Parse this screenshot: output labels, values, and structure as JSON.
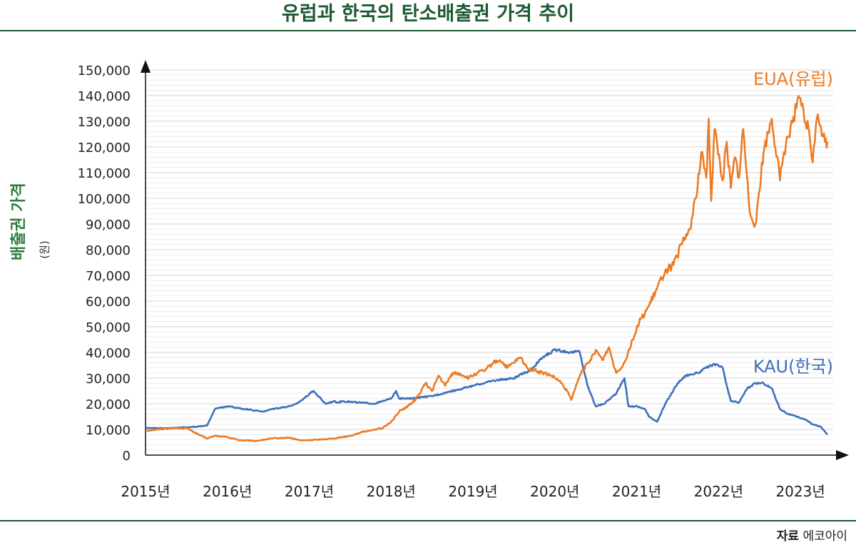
{
  "title": "유럽과 한국의 탄소배출권 가격 추이",
  "source": {
    "label": "자료",
    "name": "에코아이"
  },
  "colors": {
    "eua": "#ec7b24",
    "kau": "#3d6fbd",
    "title": "#1e5a32",
    "ylabel": "#2e7d3e",
    "grid": "#dcdcdc"
  },
  "chart_data": {
    "type": "line",
    "title": "유럽과 한국의 탄소배출권 가격 추이",
    "ylabel": "배출권 가격",
    "yunit": "(원)",
    "xlabel": "",
    "xlim": [
      2015.0,
      2023.4
    ],
    "ylim": [
      0,
      150000
    ],
    "yticks": [
      0,
      10000,
      20000,
      30000,
      40000,
      50000,
      60000,
      70000,
      80000,
      90000,
      100000,
      110000,
      120000,
      130000,
      140000,
      150000
    ],
    "ytick_labels": [
      "0",
      "10,000",
      "20,000",
      "30,000",
      "40,000",
      "50,000",
      "60,000",
      "70,000",
      "80,000",
      "90,000",
      "100,000",
      "110,000",
      "120,000",
      "130,000",
      "140,000",
      "150,000"
    ],
    "xticks": [
      2015,
      2016,
      2017,
      2018,
      2019,
      2020,
      2021,
      2022,
      2023
    ],
    "xtick_labels": [
      "2015년",
      "2016년",
      "2017년",
      "2018년",
      "2019년",
      "2020년",
      "2021년",
      "2022년",
      "2023년"
    ],
    "grid": true,
    "series": [
      {
        "name": "EUA(유럽)",
        "color": "#ec7b24",
        "x": [
          2015.0,
          2015.15,
          2015.3,
          2015.5,
          2015.65,
          2015.75,
          2015.85,
          2016.0,
          2016.15,
          2016.35,
          2016.55,
          2016.75,
          2016.9,
          2017.1,
          2017.3,
          2017.5,
          2017.65,
          2017.8,
          2017.9,
          2018.0,
          2018.1,
          2018.25,
          2018.33,
          2018.42,
          2018.5,
          2018.58,
          2018.66,
          2018.75,
          2018.85,
          2018.95,
          2019.05,
          2019.15,
          2019.25,
          2019.33,
          2019.42,
          2019.5,
          2019.58,
          2019.66,
          2019.75,
          2019.85,
          2019.95,
          2020.05,
          2020.15,
          2020.2,
          2020.25,
          2020.33,
          2020.42,
          2020.5,
          2020.58,
          2020.66,
          2020.75,
          2020.85,
          2020.95,
          2021.05,
          2021.15,
          2021.25,
          2021.35,
          2021.45,
          2021.55,
          2021.65,
          2021.72,
          2021.8,
          2021.85,
          2021.88,
          2021.91,
          2021.95,
          2022.05,
          2022.1,
          2022.15,
          2022.2,
          2022.25,
          2022.3,
          2022.38,
          2022.45,
          2022.55,
          2022.65,
          2022.75,
          2022.8,
          2022.88,
          2022.95,
          2023.0,
          2023.05,
          2023.1,
          2023.15,
          2023.2,
          2023.25,
          2023.3,
          2023.33
        ],
        "values": [
          9500,
          10000,
          10500,
          10500,
          8000,
          6500,
          7500,
          7000,
          5800,
          5500,
          6500,
          6800,
          5700,
          6000,
          6500,
          7500,
          9000,
          10000,
          10500,
          13000,
          17000,
          20000,
          23000,
          28000,
          25000,
          31000,
          27000,
          32000,
          31500,
          30000,
          32000,
          33000,
          36000,
          37000,
          34000,
          36000,
          38000,
          34000,
          33000,
          32000,
          31000,
          29000,
          25000,
          21500,
          26000,
          33000,
          36000,
          41000,
          37000,
          42000,
          32000,
          36000,
          45000,
          53000,
          58000,
          65000,
          72000,
          74000,
          82000,
          88000,
          100000,
          118000,
          108000,
          131000,
          99000,
          127000,
          107000,
          122000,
          104000,
          116000,
          108000,
          127000,
          95000,
          90000,
          118000,
          131000,
          107000,
          118000,
          128000,
          135000,
          139000,
          130000,
          127000,
          114000,
          131000,
          128000,
          122000,
          122000
        ]
      },
      {
        "name": "KAU(한국)",
        "color": "#3d6fbd",
        "x": [
          2015.0,
          2015.3,
          2015.6,
          2015.75,
          2015.85,
          2016.0,
          2016.3,
          2016.45,
          2016.55,
          2016.75,
          2016.85,
          2017.05,
          2017.2,
          2017.3,
          2017.35,
          2017.4,
          2017.6,
          2017.8,
          2018.0,
          2018.06,
          2018.1,
          2018.25,
          2018.5,
          2018.75,
          2019.0,
          2019.25,
          2019.5,
          2019.7,
          2019.85,
          2020.0,
          2020.2,
          2020.3,
          2020.4,
          2020.5,
          2020.6,
          2020.75,
          2020.85,
          2020.9,
          2021.0,
          2021.1,
          2021.15,
          2021.25,
          2021.35,
          2021.5,
          2021.6,
          2021.75,
          2021.85,
          2021.95,
          2022.05,
          2022.1,
          2022.15,
          2022.25,
          2022.35,
          2022.45,
          2022.55,
          2022.65,
          2022.75,
          2022.85,
          2022.95,
          2023.05,
          2023.15,
          2023.25,
          2023.33
        ],
        "values": [
          10500,
          10500,
          11000,
          11500,
          18000,
          19000,
          17500,
          17000,
          18000,
          19000,
          20000,
          25000,
          20000,
          21000,
          20500,
          21000,
          20500,
          20000,
          22000,
          25000,
          22000,
          22000,
          23000,
          25000,
          27000,
          29000,
          30000,
          33000,
          38000,
          41000,
          40000,
          40500,
          27000,
          19000,
          20000,
          24000,
          30000,
          19000,
          19000,
          18000,
          15000,
          13000,
          20000,
          28000,
          31000,
          32000,
          34000,
          35500,
          34000,
          27000,
          21000,
          20500,
          26000,
          28000,
          28000,
          26000,
          18000,
          16000,
          15000,
          14000,
          12000,
          11000,
          8000
        ]
      }
    ],
    "annotations": [
      {
        "text": "EUA(유럽)",
        "series": 0,
        "near": "top-right"
      },
      {
        "text": "KAU(한국)",
        "series": 1,
        "near": "right"
      }
    ]
  }
}
